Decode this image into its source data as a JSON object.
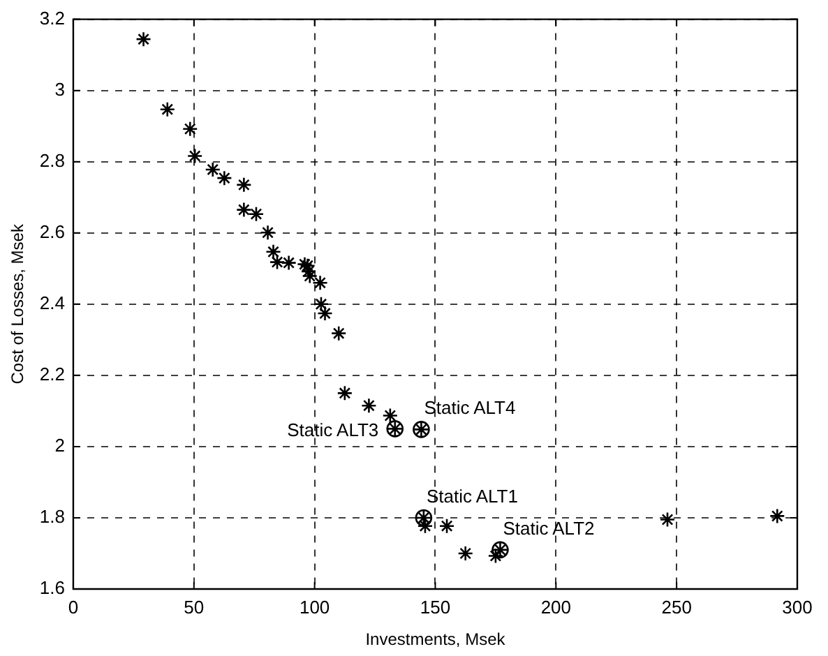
{
  "chart_data": {
    "type": "scatter",
    "xlabel": "Investments, Msek",
    "ylabel": "Cost of Losses, Msek",
    "xlim": [
      0,
      300
    ],
    "xticks": [
      0,
      50,
      100,
      150,
      200,
      250,
      300
    ],
    "ylim": [
      1.6,
      3.2
    ],
    "yticks": [
      1.6,
      1.8,
      2,
      2.2,
      2.4,
      2.6,
      2.8,
      3,
      3.2
    ],
    "grid": true,
    "legend": false,
    "series": [
      {
        "color": "#000000",
        "marker": "cross",
        "x": [
          29.1,
          39,
          48.4,
          50.4,
          57.8,
          62.6,
          70.7,
          70.7,
          75.8,
          80.6,
          82.9,
          84.5,
          89.3,
          95.9,
          97.1,
          97.5,
          98,
          102.3,
          102.7,
          104.3,
          110,
          112.5,
          122.5,
          131.3,
          133.3,
          144.2,
          145.2,
          145.8,
          154.8,
          162.5,
          175,
          176.9,
          246.2,
          291.7
        ],
        "values": [
          3.144,
          2.947,
          2.892,
          2.816,
          2.778,
          2.754,
          2.735,
          2.665,
          2.653,
          2.601,
          2.547,
          2.518,
          2.516,
          2.512,
          2.508,
          2.492,
          2.479,
          2.46,
          2.4,
          2.374,
          2.318,
          2.15,
          2.115,
          2.087,
          2.05,
          2.048,
          1.8,
          1.777,
          1.777,
          1.7,
          1.693,
          1.71,
          1.795,
          1.805
        ]
      },
      {
        "color": "#000000",
        "x": [
          145.2,
          176.9,
          133.3,
          144.2
        ],
        "values": [
          1.8,
          1.71,
          2.05,
          2.048
        ]
      }
    ],
    "annotations": [
      {
        "text": "Static ALT4",
        "x": 144.2,
        "y": 2.048
      },
      {
        "text": "Static ALT3",
        "x": 133.3,
        "y": 2.05
      },
      {
        "text": "Static ALT1",
        "x": 145.2,
        "y": 1.8
      },
      {
        "text": "Static ALT2",
        "x": 176.9,
        "y": 1.71
      }
    ]
  }
}
